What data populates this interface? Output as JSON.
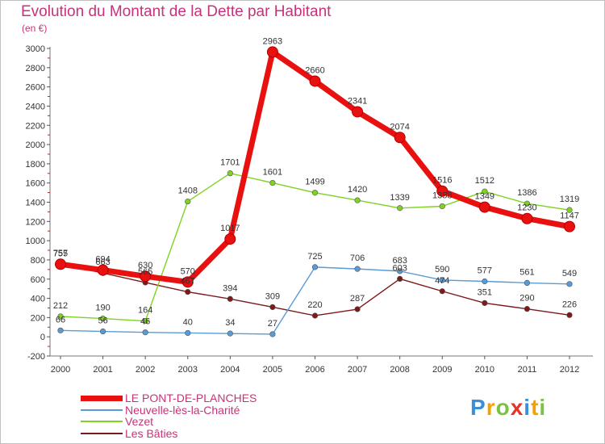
{
  "title": "Evolution du Montant de la Dette par Habitant",
  "unit": "(en €)",
  "brand": "Proxiti",
  "chart_data": {
    "type": "line",
    "title": "Evolution du Montant de la Dette par Habitant",
    "ylabel": "(en €)",
    "xlabel": "",
    "ylim": [
      -200,
      3000
    ],
    "yticks": [
      -200,
      0,
      200,
      400,
      600,
      800,
      1000,
      1200,
      1400,
      1600,
      1800,
      2000,
      2200,
      2400,
      2600,
      2800,
      3000
    ],
    "categories": [
      "2000",
      "2001",
      "2002",
      "2003",
      "2004",
      "2005",
      "2006",
      "2007",
      "2008",
      "2009",
      "2010",
      "2011",
      "2012"
    ],
    "grid": false,
    "series": [
      {
        "name": "LE PONT-DE-PLANCHES",
        "color": "#e8110f",
        "values": [
          755,
          694,
          630,
          570,
          1017,
          2963,
          2660,
          2341,
          2074,
          1516,
          1349,
          1230,
          1147
        ]
      },
      {
        "name": "Neuvelle-lès-la-Charité",
        "color": "#5a9bd4",
        "values": [
          66,
          56,
          46,
          40,
          34,
          27,
          725,
          706,
          683,
          590,
          577,
          561,
          549
        ]
      },
      {
        "name": "Vezet",
        "color": "#7ed321",
        "values": [
          212,
          190,
          164,
          1408,
          1701,
          1601,
          1499,
          1420,
          1339,
          1358,
          1512,
          1386,
          1319
        ]
      },
      {
        "name": "Les Bâties",
        "color": "#7b1a1a",
        "values": [
          757,
          663,
          565,
          467,
          394,
          309,
          220,
          287,
          603,
          474,
          351,
          290,
          226
        ]
      }
    ]
  }
}
